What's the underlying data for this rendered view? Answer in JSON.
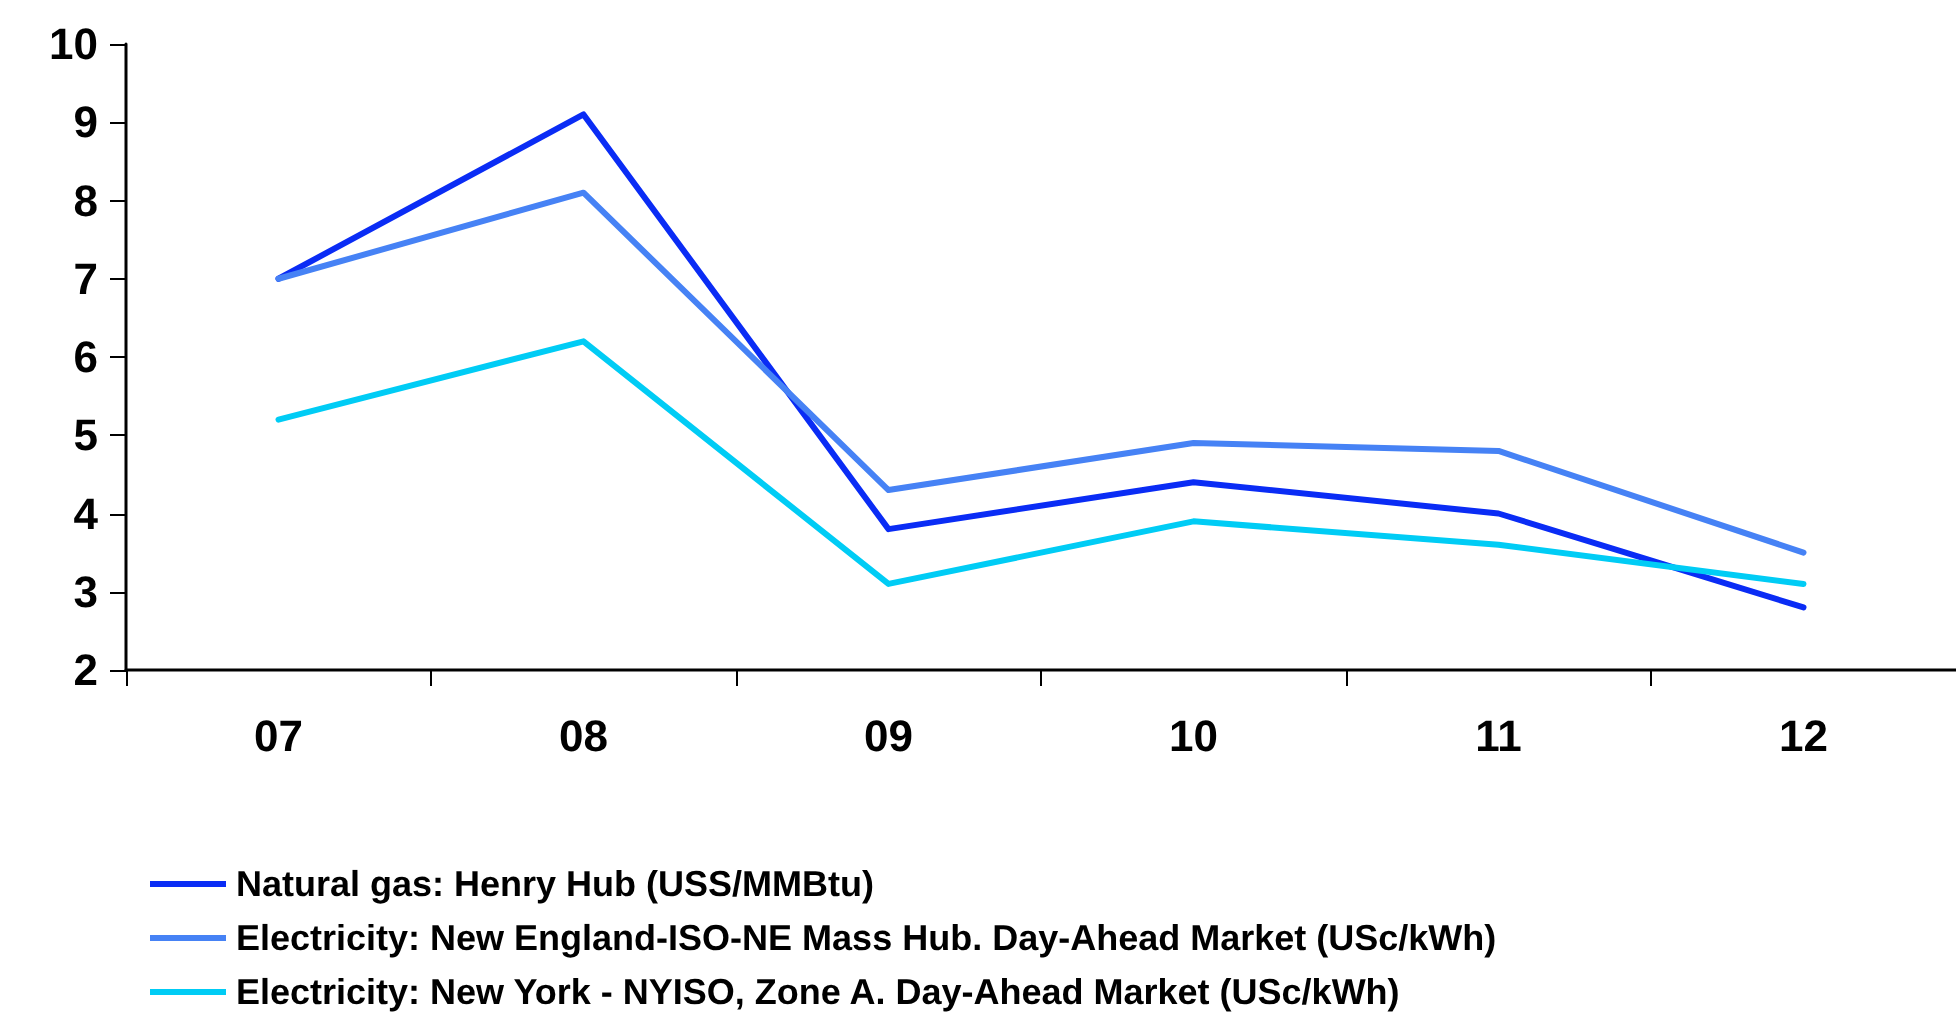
{
  "chart_data": {
    "type": "line",
    "categories": [
      "07",
      "08",
      "09",
      "10",
      "11",
      "12"
    ],
    "series": [
      {
        "name": "Natural gas: Henry Hub (USS/MMBtu)",
        "color": "#0a2cf5",
        "values": [
          7.0,
          9.1,
          3.8,
          4.4,
          4.0,
          2.8
        ]
      },
      {
        "name": "Electricity: New England-ISO-NE Mass Hub. Day-Ahead Market (USc/kWh)",
        "color": "#4682f5",
        "values": [
          7.0,
          8.1,
          4.3,
          4.9,
          4.8,
          3.5
        ]
      },
      {
        "name": "Electricity: New York - NYISO, Zone A. Day-Ahead Market (USc/kWh)",
        "color": "#00ccf5",
        "values": [
          5.2,
          6.2,
          3.1,
          3.9,
          3.6,
          3.1
        ]
      }
    ],
    "ylim": [
      2,
      10
    ],
    "yticks": [
      2,
      3,
      4,
      5,
      6,
      7,
      8,
      9,
      10
    ],
    "grid": false,
    "legend": "bottom left",
    "marker": "none",
    "line_style": "solid"
  }
}
